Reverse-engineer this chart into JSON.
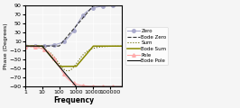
{
  "title": "",
  "xlabel": "Frequency",
  "ylabel": "Phase (Degrees)",
  "xlim": [
    1,
    500000
  ],
  "ylim": [
    -90,
    90
  ],
  "yticks": [
    -90,
    -70,
    -50,
    -30,
    -10,
    10,
    30,
    50,
    70,
    90
  ],
  "xticks": [
    1,
    10,
    100,
    1000,
    10000,
    100000
  ],
  "pole_freq": 100,
  "zero_freq": 1000,
  "legend_entries": [
    "Zero",
    "Bode Zero",
    "Sum",
    "Bode Sum",
    "Pole",
    "Bode Pole"
  ],
  "colors": {
    "zero": "#aaaacc",
    "bode_zero": "#333333",
    "sum": "#666600",
    "bode_sum": "#888800",
    "pole": "#ffaaaa",
    "bode_pole": "#111111"
  },
  "background": "#f5f5f5"
}
